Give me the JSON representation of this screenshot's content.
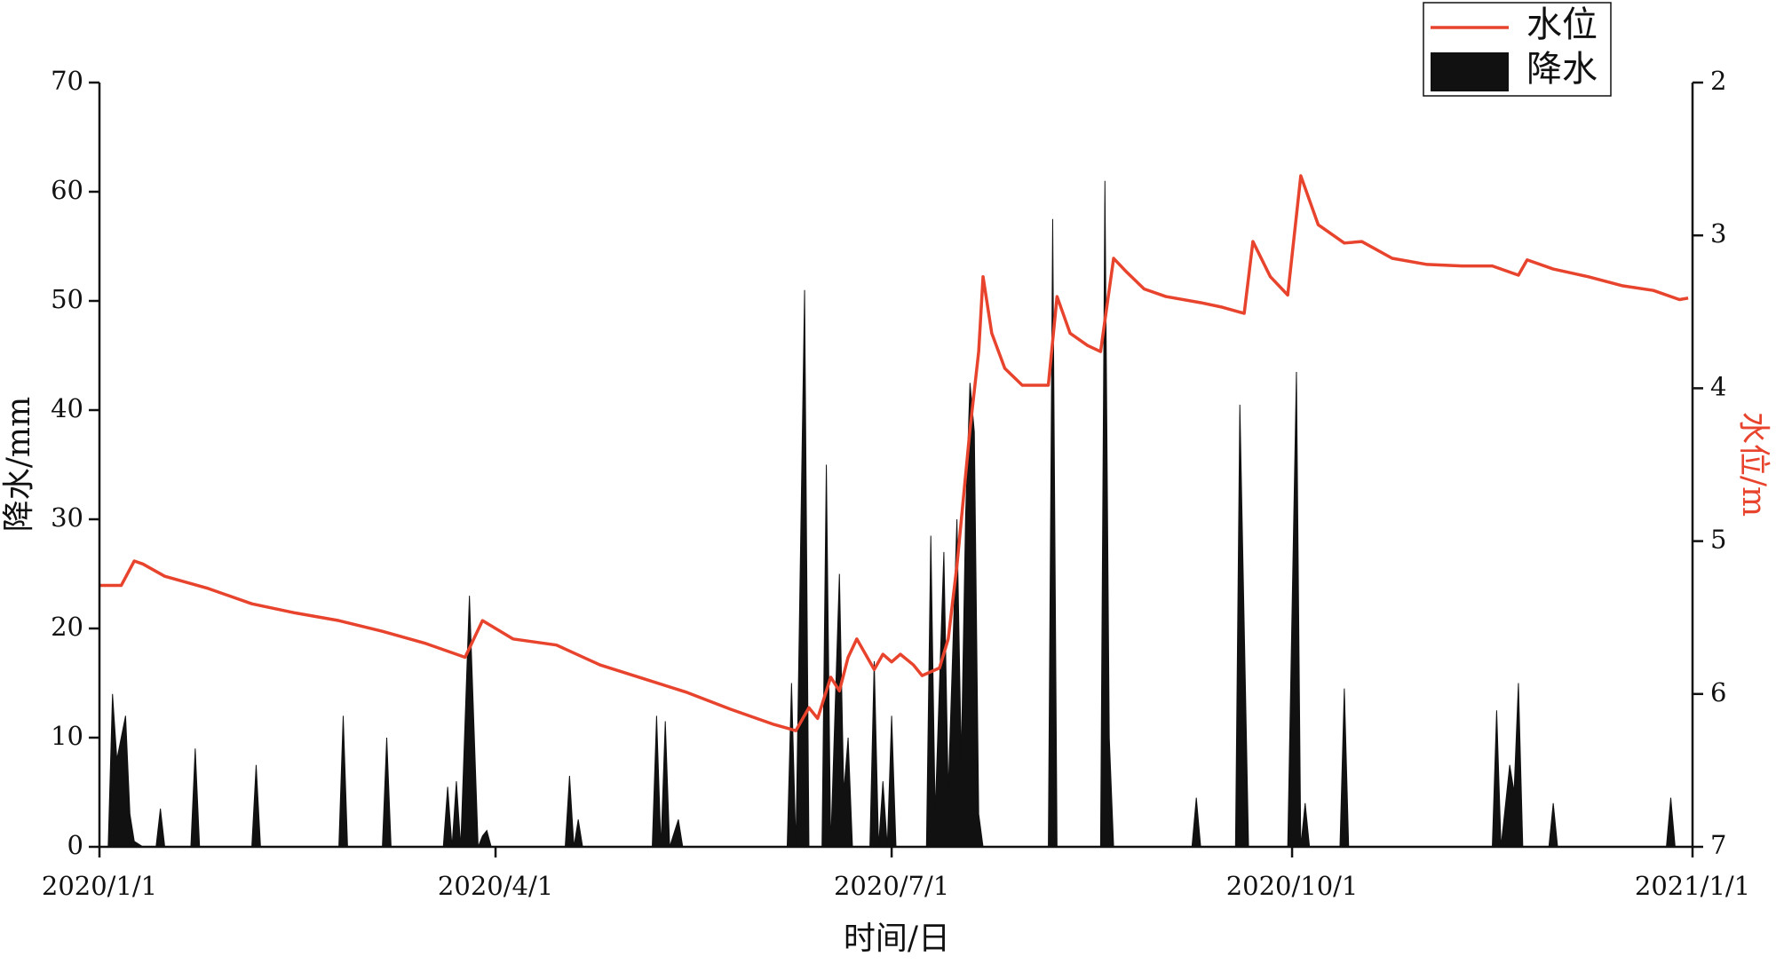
{
  "chart_data": {
    "type": "dual-axis",
    "x_label": "时间/日",
    "y_label": "降水/mm",
    "y2_label": "水位/m",
    "xlim": [
      "2020/1/1",
      "2021/1/1"
    ],
    "xticks": [
      "2020/1/1",
      "2020/4/1",
      "2020/7/1",
      "2020/10/1",
      "2021/1/1"
    ],
    "ylim": [
      0,
      70
    ],
    "yticks": [
      0,
      10,
      20,
      30,
      40,
      50,
      60,
      70
    ],
    "y2lim": [
      7,
      2
    ],
    "y2ticks": [
      2,
      3,
      4,
      5,
      6,
      7
    ],
    "y2_color": "#e8432d",
    "legend": "top-right",
    "series": [
      {
        "name": "水位",
        "type": "line",
        "axis": "y2",
        "color": "#e8432d",
        "x": [
          "2020/1/1",
          "2020/1/6",
          "2020/1/9",
          "2020/1/11",
          "2020/1/16",
          "2020/1/26",
          "2020/2/5",
          "2020/2/15",
          "2020/2/25",
          "2020/3/6",
          "2020/3/16",
          "2020/3/25",
          "2020/3/29",
          "2020/4/5",
          "2020/4/15",
          "2020/4/25",
          "2020/5/5",
          "2020/5/15",
          "2020/5/25",
          "2020/6/4",
          "2020/6/9",
          "2020/6/12",
          "2020/6/14",
          "2020/6/17",
          "2020/6/19",
          "2020/6/21",
          "2020/6/23",
          "2020/6/27",
          "2020/6/29",
          "2020/7/1",
          "2020/7/3",
          "2020/7/6",
          "2020/7/8",
          "2020/7/12",
          "2020/7/14",
          "2020/7/16",
          "2020/7/19",
          "2020/7/21",
          "2020/7/22",
          "2020/7/24",
          "2020/7/27",
          "2020/7/31",
          "2020/8/6",
          "2020/8/8",
          "2020/8/11",
          "2020/8/15",
          "2020/8/18",
          "2020/8/21",
          "2020/8/24",
          "2020/8/28",
          "2020/9/2",
          "2020/9/10",
          "2020/9/15",
          "2020/9/20",
          "2020/9/22",
          "2020/9/26",
          "2020/9/30",
          "2020/10/3",
          "2020/10/7",
          "2020/10/13",
          "2020/10/17",
          "2020/10/24",
          "2020/11/1",
          "2020/11/9",
          "2020/11/16",
          "2020/11/22",
          "2020/11/24",
          "2020/11/30",
          "2020/12/8",
          "2020/12/16",
          "2020/12/23",
          "2020/12/29",
          "2020/12/31"
        ],
        "values": [
          5.29,
          5.29,
          5.13,
          5.15,
          5.23,
          5.31,
          5.41,
          5.47,
          5.52,
          5.59,
          5.67,
          5.76,
          5.52,
          5.64,
          5.68,
          5.81,
          5.9,
          5.99,
          6.1,
          6.2,
          6.24,
          6.09,
          6.16,
          5.89,
          5.98,
          5.76,
          5.64,
          5.84,
          5.74,
          5.79,
          5.74,
          5.81,
          5.88,
          5.83,
          5.64,
          5.16,
          4.27,
          3.76,
          3.27,
          3.64,
          3.87,
          3.98,
          3.98,
          3.4,
          3.64,
          3.72,
          3.76,
          3.15,
          3.24,
          3.35,
          3.4,
          3.44,
          3.47,
          3.51,
          3.04,
          3.27,
          3.39,
          2.61,
          2.93,
          3.05,
          3.04,
          3.15,
          3.19,
          3.2,
          3.2,
          3.26,
          3.16,
          3.22,
          3.27,
          3.33,
          3.36,
          3.42,
          3.41
        ]
      },
      {
        "name": "降水",
        "type": "area",
        "axis": "y",
        "color": "#111111",
        "x": [
          "2020/1/3",
          "2020/1/4",
          "2020/1/5",
          "2020/1/7",
          "2020/1/8",
          "2020/1/9",
          "2020/1/11",
          "2020/1/14",
          "2020/1/15",
          "2020/1/16",
          "2020/1/22",
          "2020/1/23",
          "2020/1/24",
          "2020/2/5",
          "2020/2/6",
          "2020/2/7",
          "2020/2/25",
          "2020/2/26",
          "2020/2/27",
          "2020/3/6",
          "2020/3/7",
          "2020/3/8",
          "2020/3/20",
          "2020/3/21",
          "2020/3/22",
          "2020/3/23",
          "2020/3/24",
          "2020/3/26",
          "2020/3/28",
          "2020/3/29",
          "2020/3/30",
          "2020/3/31",
          "2020/4/17",
          "2020/4/18",
          "2020/4/19",
          "2020/4/20",
          "2020/4/21",
          "2020/5/7",
          "2020/5/8",
          "2020/5/9",
          "2020/5/10",
          "2020/5/11",
          "2020/5/13",
          "2020/5/14",
          "2020/6/7",
          "2020/6/8",
          "2020/6/9",
          "2020/6/11",
          "2020/6/12",
          "2020/6/15",
          "2020/6/16",
          "2020/6/17",
          "2020/6/19",
          "2020/6/20",
          "2020/6/21",
          "2020/6/22",
          "2020/6/26",
          "2020/6/27",
          "2020/6/28",
          "2020/6/29",
          "2020/6/30",
          "2020/7/1",
          "2020/7/2",
          "2020/7/9",
          "2020/7/10",
          "2020/7/11",
          "2020/7/13",
          "2020/7/14",
          "2020/7/16",
          "2020/7/17",
          "2020/7/18",
          "2020/7/19",
          "2020/7/20",
          "2020/7/21",
          "2020/7/22",
          "2020/8/6",
          "2020/8/7",
          "2020/8/8",
          "2020/8/18",
          "2020/8/19",
          "2020/8/20",
          "2020/8/21",
          "2020/9/8",
          "2020/9/9",
          "2020/9/10",
          "2020/9/18",
          "2020/9/19",
          "2020/9/21",
          "2020/9/30",
          "2020/10/2",
          "2020/10/3",
          "2020/10/4",
          "2020/10/5",
          "2020/10/12",
          "2020/10/13",
          "2020/10/14",
          "2020/11/16",
          "2020/11/17",
          "2020/11/18",
          "2020/11/20",
          "2020/11/21",
          "2020/11/22",
          "2020/11/23",
          "2020/11/29",
          "2020/11/30",
          "2020/12/1",
          "2020/12/26",
          "2020/12/27",
          "2020/12/28"
        ],
        "values": [
          0,
          14,
          8,
          12,
          3,
          0.5,
          0,
          0,
          3.5,
          0,
          0,
          9,
          0,
          0,
          7.5,
          0,
          0,
          12,
          0,
          0,
          10,
          0,
          0,
          5.5,
          0,
          6,
          0,
          23,
          0,
          1,
          1.5,
          0,
          0,
          6.5,
          0,
          2.5,
          0,
          0,
          12,
          0,
          11.5,
          0,
          2.5,
          0,
          0,
          15,
          0,
          51,
          0,
          0,
          35,
          0,
          25,
          5,
          10,
          0,
          0,
          17,
          0,
          6,
          0,
          12,
          0,
          0,
          28.5,
          3,
          27,
          5,
          30,
          8,
          30.5,
          42.5,
          38,
          3,
          0,
          0,
          57.5,
          0,
          0,
          61,
          10,
          0,
          0,
          4.5,
          0,
          0,
          40.5,
          0,
          0,
          43.5,
          0,
          4,
          0,
          0,
          14.5,
          0,
          0,
          12.5,
          0,
          7.5,
          5,
          15,
          0,
          0,
          4,
          0,
          0,
          4.5,
          0
        ]
      }
    ]
  }
}
